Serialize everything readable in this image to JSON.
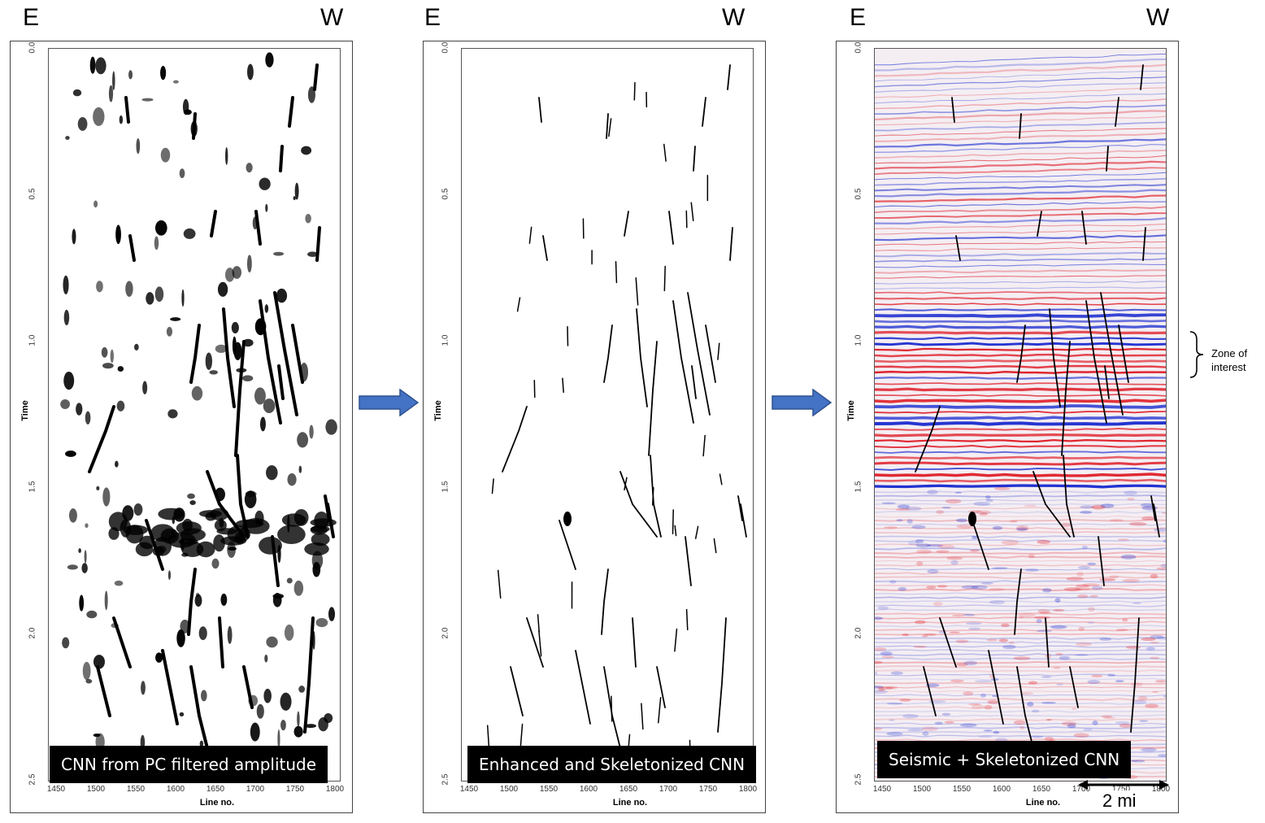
{
  "direction_labels": {
    "east": "E",
    "west": "W"
  },
  "panels": [
    {
      "caption": "CNN from PC filtered amplitude"
    },
    {
      "caption": "Enhanced and Skeletonized CNN"
    },
    {
      "caption": "Seismic + Skeletonized CNN"
    }
  ],
  "axes": {
    "y_label": "Time",
    "y_ticks": [
      "0.0",
      "0.5",
      "1.0",
      "1.5",
      "2.0",
      "2.5"
    ],
    "x_label": "Line no.",
    "x_ticks": [
      "1450",
      "1500",
      "1550",
      "1600",
      "1650",
      "1700",
      "1750",
      "1800"
    ]
  },
  "annotations": {
    "zone_of_interest": "Zone of interest",
    "zone_line1": "Zone of",
    "zone_line2": "interest",
    "scale_bar": "2 mi"
  },
  "colors": {
    "arrow": "#4472c4",
    "arrow_edge": "#2f528f",
    "seismic_red": "#e0202a",
    "seismic_blue": "#2030d0",
    "fault": "#000000"
  }
}
